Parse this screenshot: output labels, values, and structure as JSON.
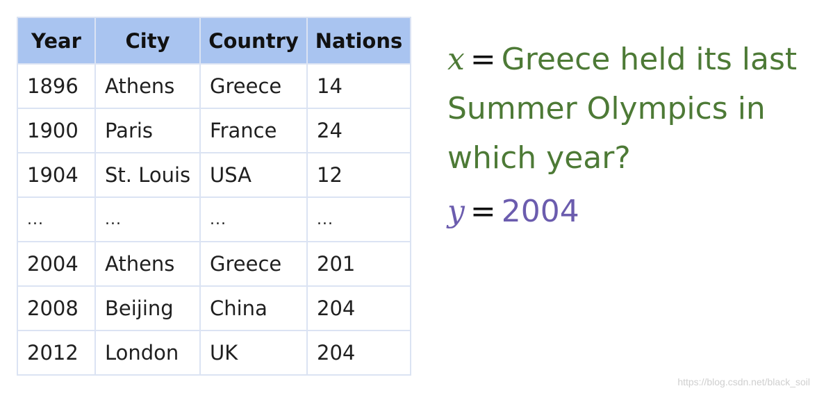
{
  "table": {
    "headers": [
      "Year",
      "City",
      "Country",
      "Nations"
    ],
    "rows": [
      [
        "1896",
        "Athens",
        "Greece",
        "14"
      ],
      [
        "1900",
        "Paris",
        "France",
        "24"
      ],
      [
        "1904",
        "St. Louis",
        "USA",
        "12"
      ],
      [
        "...",
        "...",
        "...",
        "..."
      ],
      [
        "2004",
        "Athens",
        "Greece",
        "201"
      ],
      [
        "2008",
        "Beijing",
        "China",
        "204"
      ],
      [
        "2012",
        "London",
        "UK",
        "204"
      ]
    ]
  },
  "qa": {
    "x_var": "x",
    "equals": "=",
    "question": "Greece held its last Summer Olympics in which year?",
    "y_var": "y",
    "answer": "2004"
  },
  "watermark": "https://blog.csdn.net/black_soil",
  "colors": {
    "header_bg": "#a9c4f0",
    "grid": "#dbe3f3",
    "question": "#4d7a36",
    "answer": "#6b5cae"
  }
}
